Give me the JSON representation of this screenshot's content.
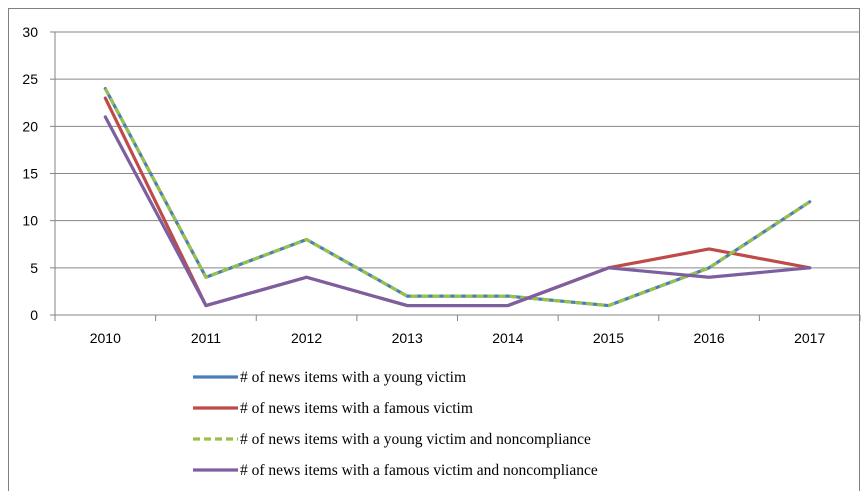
{
  "chart_data": {
    "type": "line",
    "x": [
      "2010",
      "2011",
      "2012",
      "2013",
      "2014",
      "2015",
      "2016",
      "2017"
    ],
    "ylim": [
      0,
      30
    ],
    "yticks": [
      0,
      5,
      10,
      15,
      20,
      25,
      30
    ],
    "grid": "horizontal",
    "legend_position": "bottom",
    "series": [
      {
        "name": "# of news items with a young victim",
        "color": "#4a7ebb",
        "style": "solid",
        "values": [
          24,
          4,
          8,
          2,
          2,
          1,
          5,
          12
        ]
      },
      {
        "name": "# of news items with a famous victim",
        "color": "#be4b48",
        "style": "solid",
        "values": [
          23,
          1,
          4,
          1,
          1,
          5,
          7,
          5
        ]
      },
      {
        "name": "# of news items with a young victim and noncompliance",
        "color": "#98c14a",
        "style": "dashed",
        "values": [
          24,
          4,
          8,
          2,
          2,
          1,
          5,
          12
        ]
      },
      {
        "name": "# of news items with a famous victim and  noncompliance",
        "color": "#7d5fa0",
        "style": "solid",
        "values": [
          21,
          1,
          4,
          1,
          1,
          5,
          4,
          5
        ]
      }
    ]
  }
}
